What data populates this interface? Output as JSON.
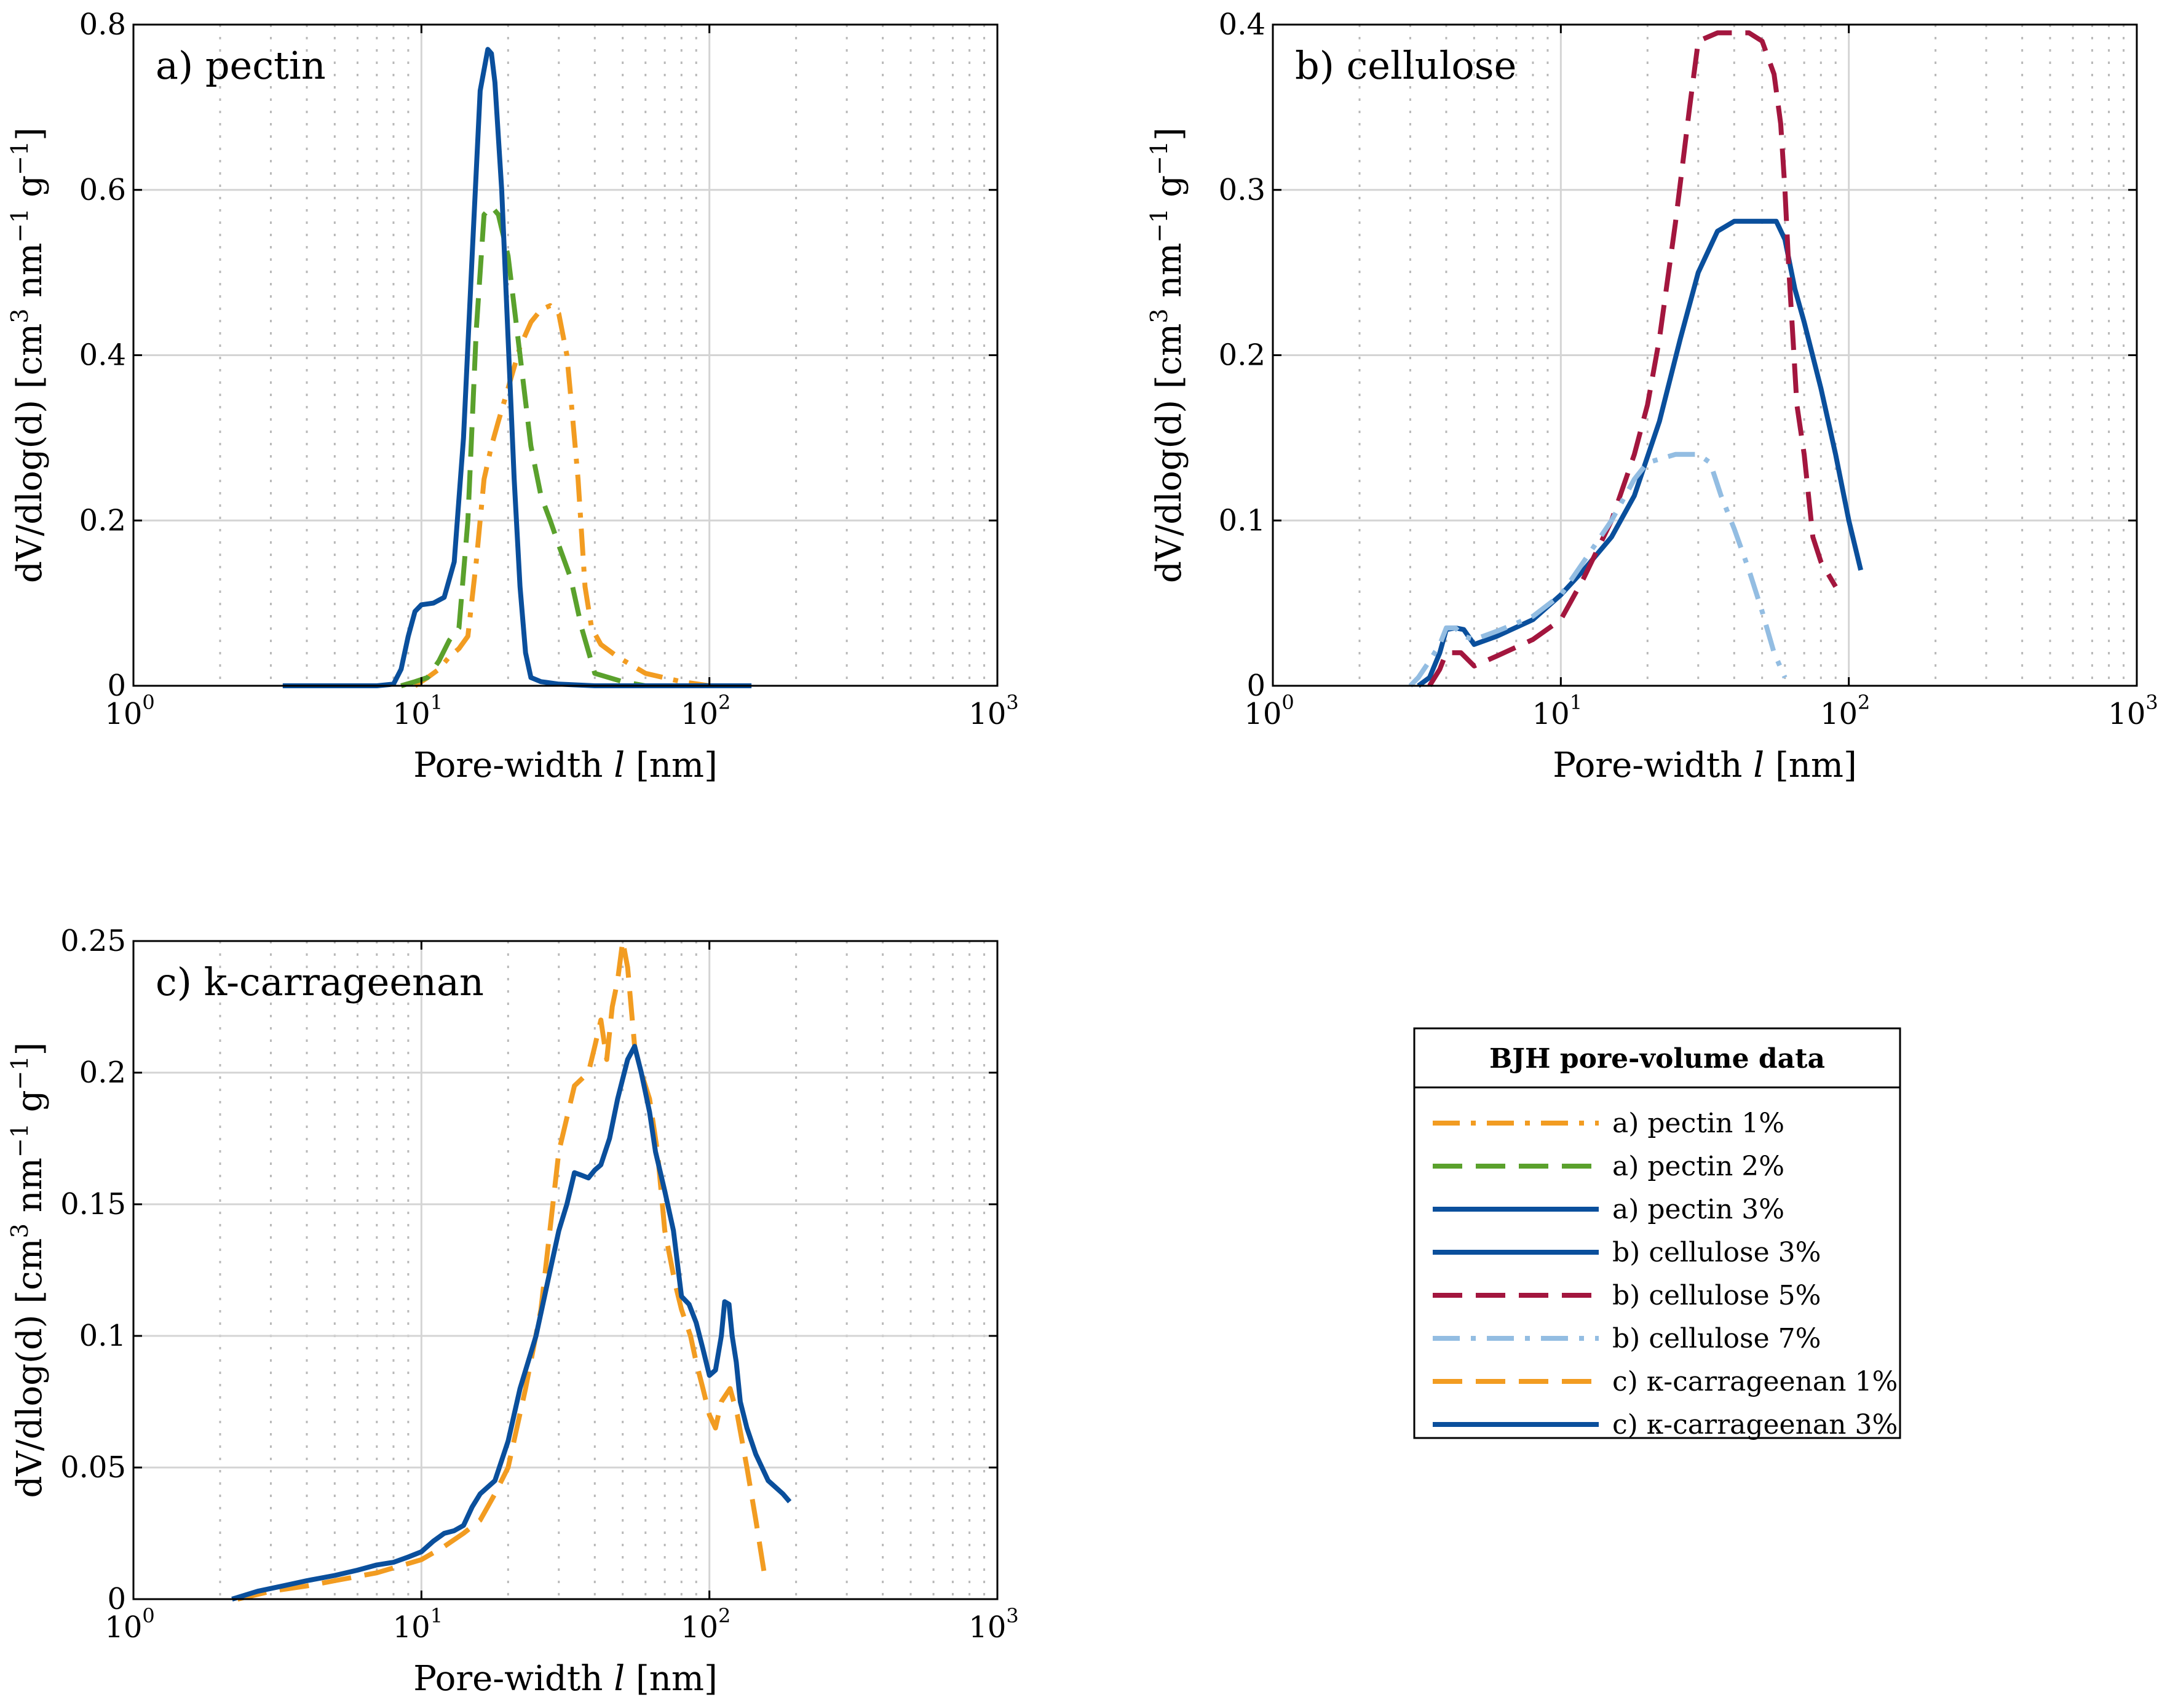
{
  "chart_data": [
    {
      "id": "a",
      "type": "line",
      "title": "a) pectin",
      "xscale": "log",
      "xlim": [
        1,
        1000
      ],
      "ylim": [
        0,
        0.8
      ],
      "xlabel": "Pore-width l [nm]",
      "ylabel": "dV/dlog(d) [cm3 nm-1 g-1]",
      "xticks": [
        {
          "base": "10",
          "exp": "0"
        },
        {
          "base": "10",
          "exp": "1"
        },
        {
          "base": "10",
          "exp": "2"
        },
        {
          "base": "10",
          "exp": "3"
        }
      ],
      "yticks": [
        "0",
        "0.2",
        "0.4",
        "0.6",
        "0.8"
      ],
      "ytick_values": [
        0,
        0.2,
        0.4,
        0.6,
        0.8
      ],
      "series": [
        {
          "name": "a) pectin 1%",
          "color": "#f29c21",
          "style": "dashdot",
          "x": [
            9.5,
            10.5,
            11.5,
            12.5,
            13.5,
            14.5,
            15.5,
            16.5,
            17.5,
            18.5,
            20,
            22,
            24,
            26,
            28,
            30,
            32,
            33,
            35,
            37,
            39,
            42,
            48,
            60,
            80,
            100
          ],
          "y": [
            0,
            0.01,
            0.02,
            0.035,
            0.045,
            0.06,
            0.15,
            0.25,
            0.29,
            0.32,
            0.36,
            0.41,
            0.44,
            0.455,
            0.46,
            0.45,
            0.4,
            0.35,
            0.25,
            0.12,
            0.07,
            0.05,
            0.035,
            0.015,
            0.005,
            0
          ]
        },
        {
          "name": "a) pectin 2%",
          "color": "#5aa12c",
          "style": "dashed",
          "x": [
            8.5,
            9.5,
            10.5,
            11.5,
            12.5,
            13.5,
            14.5,
            15.5,
            16.5,
            17.5,
            18.5,
            20,
            22,
            24,
            26,
            28,
            30,
            33,
            36,
            40,
            50,
            60,
            80,
            100
          ],
          "y": [
            0,
            0.005,
            0.01,
            0.03,
            0.055,
            0.07,
            0.2,
            0.43,
            0.57,
            0.58,
            0.57,
            0.52,
            0.4,
            0.29,
            0.23,
            0.2,
            0.17,
            0.13,
            0.07,
            0.015,
            0.005,
            0,
            0,
            0
          ]
        },
        {
          "name": "a) pectin 3%",
          "color": "#0a4f9c",
          "style": "solid",
          "x": [
            3.3,
            5,
            7,
            8,
            8.5,
            9,
            9.5,
            10,
            11,
            12,
            13,
            14,
            15,
            16,
            17,
            17.5,
            18,
            19,
            20,
            21,
            22,
            23,
            24,
            26,
            30,
            40,
            60,
            100,
            140
          ],
          "y": [
            0,
            0,
            0,
            0.002,
            0.02,
            0.06,
            0.09,
            0.098,
            0.1,
            0.107,
            0.15,
            0.3,
            0.52,
            0.72,
            0.77,
            0.765,
            0.73,
            0.6,
            0.42,
            0.25,
            0.12,
            0.04,
            0.01,
            0.005,
            0.002,
            0,
            0,
            0,
            0
          ]
        }
      ]
    },
    {
      "id": "b",
      "type": "line",
      "title": "b) cellulose",
      "xscale": "log",
      "xlim": [
        1,
        1000
      ],
      "ylim": [
        0,
        0.4
      ],
      "xlabel": "Pore-width l [nm]",
      "ylabel": "dV/dlog(d) [cm3 nm-1 g-1]",
      "xticks": [
        {
          "base": "10",
          "exp": "0"
        },
        {
          "base": "10",
          "exp": "1"
        },
        {
          "base": "10",
          "exp": "2"
        },
        {
          "base": "10",
          "exp": "3"
        }
      ],
      "yticks": [
        "0",
        "0.1",
        "0.2",
        "0.3",
        "0.4"
      ],
      "ytick_values": [
        0,
        0.1,
        0.2,
        0.3,
        0.4
      ],
      "series": [
        {
          "name": "b) cellulose 3%",
          "color": "#0a4f9c",
          "style": "solid",
          "x": [
            3.2,
            3.5,
            3.8,
            4.0,
            4.3,
            4.6,
            5.0,
            6,
            8,
            10,
            12,
            15,
            18,
            22,
            26,
            30,
            35,
            40,
            50,
            56,
            60,
            65,
            70,
            80,
            90,
            100,
            110
          ],
          "y": [
            0,
            0.005,
            0.02,
            0.034,
            0.035,
            0.034,
            0.025,
            0.03,
            0.04,
            0.055,
            0.07,
            0.09,
            0.115,
            0.16,
            0.21,
            0.25,
            0.275,
            0.281,
            0.281,
            0.281,
            0.27,
            0.24,
            0.22,
            0.18,
            0.14,
            0.1,
            0.07
          ]
        },
        {
          "name": "b) cellulose 5%",
          "color": "#a3163e",
          "style": "dashed",
          "x": [
            3.5,
            3.8,
            4.0,
            4.5,
            5,
            6,
            8,
            10,
            12,
            15,
            18,
            20,
            22,
            25,
            28,
            30,
            35,
            40,
            45,
            50,
            55,
            58,
            60,
            62,
            64,
            66,
            70,
            75,
            80,
            90
          ],
          "y": [
            0,
            0.01,
            0.02,
            0.02,
            0.012,
            0.018,
            0.028,
            0.04,
            0.065,
            0.1,
            0.14,
            0.17,
            0.21,
            0.28,
            0.35,
            0.39,
            0.395,
            0.395,
            0.395,
            0.39,
            0.37,
            0.34,
            0.3,
            0.25,
            0.21,
            0.17,
            0.14,
            0.09,
            0.075,
            0.06
          ]
        },
        {
          "name": "b) cellulose 7%",
          "color": "#93bde2",
          "style": "dashdot",
          "x": [
            3.0,
            3.2,
            3.5,
            3.8,
            4.0,
            4.3,
            4.6,
            5,
            6,
            8,
            10,
            12,
            15,
            18,
            20,
            25,
            30,
            33,
            36,
            40,
            45,
            50,
            55,
            60
          ],
          "y": [
            0,
            0.005,
            0.015,
            0.025,
            0.035,
            0.035,
            0.03,
            0.028,
            0.033,
            0.042,
            0.055,
            0.075,
            0.1,
            0.125,
            0.135,
            0.14,
            0.14,
            0.135,
            0.115,
            0.095,
            0.07,
            0.045,
            0.02,
            0.005
          ]
        }
      ]
    },
    {
      "id": "c",
      "type": "line",
      "title": "c) k-carrageenan",
      "xscale": "log",
      "xlim": [
        1,
        1000
      ],
      "ylim": [
        0,
        0.25
      ],
      "xlabel": "Pore-width l [nm]",
      "ylabel": "dV/dlog(d) [cm3 nm-1 g-1]",
      "xticks": [
        {
          "base": "10",
          "exp": "0"
        },
        {
          "base": "10",
          "exp": "1"
        },
        {
          "base": "10",
          "exp": "2"
        },
        {
          "base": "10",
          "exp": "3"
        }
      ],
      "yticks": [
        "0",
        "0.05",
        "0.1",
        "0.15",
        "0.2",
        "0.25"
      ],
      "ytick_values": [
        0,
        0.05,
        0.1,
        0.15,
        0.2,
        0.25
      ],
      "series": [
        {
          "name": "c) κ-carrageenan 1%",
          "color": "#f29c21",
          "style": "dashed",
          "x": [
            2.3,
            3,
            4,
            5,
            7,
            10,
            12,
            14,
            16,
            18,
            20,
            23,
            26,
            30,
            34,
            38,
            40,
            42,
            44,
            46,
            48,
            50,
            52,
            55,
            58,
            62,
            66,
            70,
            76,
            80,
            86,
            90,
            95,
            100,
            105,
            110,
            118,
            125,
            135,
            145,
            155
          ],
          "y": [
            0,
            0.003,
            0.005,
            0.007,
            0.01,
            0.015,
            0.02,
            0.025,
            0.03,
            0.04,
            0.05,
            0.08,
            0.11,
            0.17,
            0.195,
            0.2,
            0.21,
            0.22,
            0.205,
            0.225,
            0.235,
            0.25,
            0.24,
            0.21,
            0.2,
            0.19,
            0.17,
            0.14,
            0.12,
            0.11,
            0.1,
            0.09,
            0.08,
            0.07,
            0.065,
            0.075,
            0.08,
            0.07,
            0.05,
            0.03,
            0.01
          ]
        },
        {
          "name": "c) κ-carrageenan 3%",
          "color": "#0a4f9c",
          "style": "solid",
          "x": [
            2.2,
            2.7,
            3.3,
            4,
            5,
            6,
            7,
            8,
            9,
            10,
            11,
            12,
            13,
            14,
            15,
            16,
            18,
            20,
            22,
            25,
            28,
            30,
            32,
            34,
            36,
            38,
            40,
            42,
            45,
            48,
            52,
            55,
            58,
            62,
            65,
            70,
            75,
            80,
            85,
            90,
            95,
            100,
            105,
            110,
            113,
            117,
            120,
            124,
            128,
            135,
            145,
            160,
            180,
            190
          ],
          "y": [
            0,
            0.003,
            0.005,
            0.007,
            0.009,
            0.011,
            0.013,
            0.014,
            0.016,
            0.018,
            0.022,
            0.025,
            0.026,
            0.028,
            0.035,
            0.04,
            0.045,
            0.06,
            0.08,
            0.1,
            0.125,
            0.14,
            0.15,
            0.162,
            0.161,
            0.16,
            0.163,
            0.165,
            0.175,
            0.19,
            0.205,
            0.21,
            0.2,
            0.185,
            0.17,
            0.155,
            0.14,
            0.115,
            0.112,
            0.105,
            0.095,
            0.085,
            0.087,
            0.1,
            0.113,
            0.112,
            0.1,
            0.09,
            0.075,
            0.065,
            0.055,
            0.045,
            0.04,
            0.037
          ]
        }
      ]
    }
  ],
  "legend": {
    "title": "BJH pore-volume data",
    "items": [
      {
        "label": "a) pectin 1%",
        "color": "#f29c21",
        "style": "dashdot"
      },
      {
        "label": "a) pectin 2%",
        "color": "#5aa12c",
        "style": "dashed"
      },
      {
        "label": "a) pectin 3%",
        "color": "#0a4f9c",
        "style": "solid"
      },
      {
        "label": "b) cellulose 3%",
        "color": "#0a4f9c",
        "style": "solid"
      },
      {
        "label": "b) cellulose 5%",
        "color": "#a3163e",
        "style": "dashed"
      },
      {
        "label": "b) cellulose 7%",
        "color": "#93bde2",
        "style": "dashdot"
      },
      {
        "label": "c) κ-carrageenan 1%",
        "color": "#f29c21",
        "style": "dashed"
      },
      {
        "label": "c) κ-carrageenan 3%",
        "color": "#0a4f9c",
        "style": "solid"
      }
    ]
  }
}
